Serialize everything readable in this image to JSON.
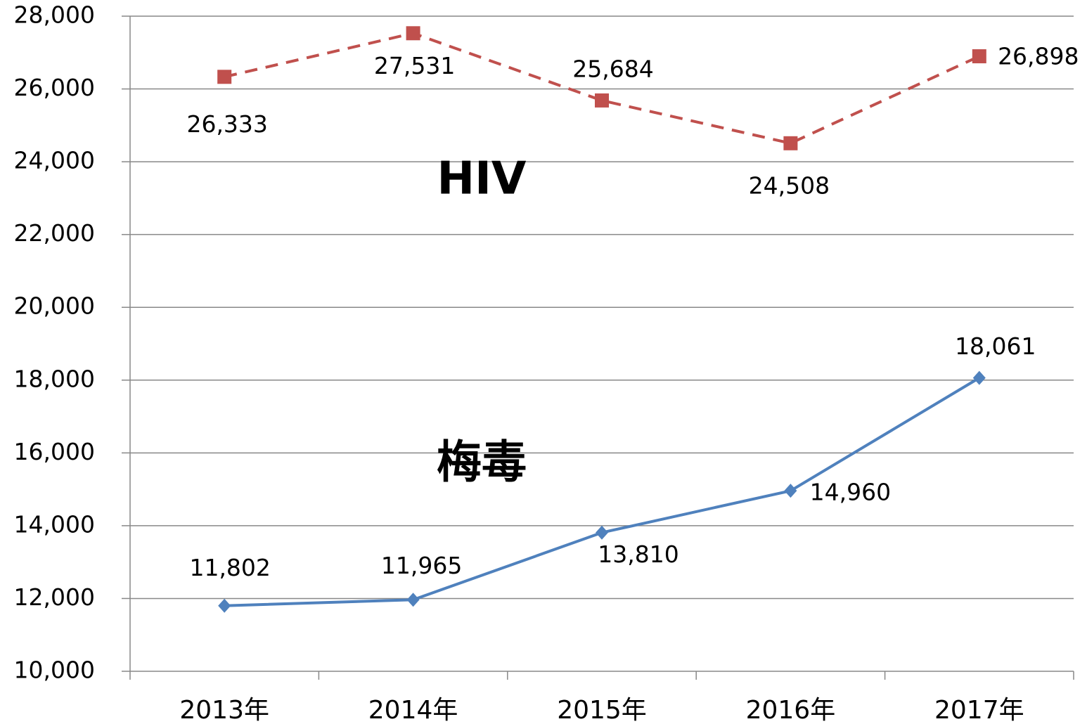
{
  "chart_data": {
    "type": "line",
    "categories": [
      "2013年",
      "2014年",
      "2015年",
      "2016年",
      "2017年"
    ],
    "series": [
      {
        "name": "HIV",
        "color": "#c0504d",
        "dashed": true,
        "marker": "square",
        "values": [
          26333,
          27531,
          25684,
          24508,
          26898
        ],
        "value_labels": [
          "26,333",
          "27,531",
          "25,684",
          "24,508",
          "26,898"
        ]
      },
      {
        "name": "梅毒",
        "color": "#4f81bd",
        "dashed": false,
        "marker": "diamond",
        "values": [
          11802,
          11965,
          13810,
          14960,
          18061
        ],
        "value_labels": [
          "11,802",
          "11,965",
          "13,810",
          "14,960",
          "18,061"
        ]
      }
    ],
    "ylim": [
      10000,
      28000
    ],
    "yticks": [
      {
        "value": 10000,
        "label": "10,000"
      },
      {
        "value": 12000,
        "label": "12,000"
      },
      {
        "value": 14000,
        "label": "14,000"
      },
      {
        "value": 16000,
        "label": "16,000"
      },
      {
        "value": 18000,
        "label": "18,000"
      },
      {
        "value": 20000,
        "label": "20,000"
      },
      {
        "value": 22000,
        "label": "22,000"
      },
      {
        "value": 24000,
        "label": "24,000"
      },
      {
        "value": 26000,
        "label": "26,000"
      },
      {
        "value": 28000,
        "label": "28,000"
      }
    ],
    "grid": true
  }
}
